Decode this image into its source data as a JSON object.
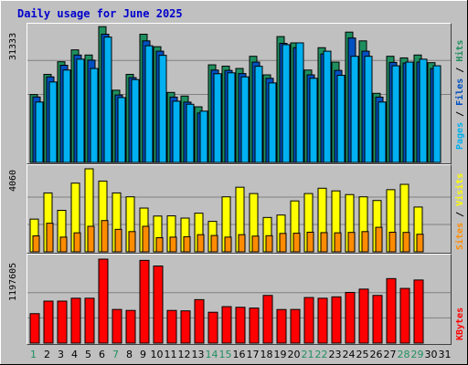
{
  "title": "Daily usage for June 2025",
  "colors": {
    "background": "#c0c0c0",
    "title": "#0000cc",
    "hits": "#1f8f5f",
    "files": "#0050c0",
    "pages": "#00b0f0",
    "visits": "#ffff00",
    "sites": "#ff8c00",
    "kbytes": "#ff0000",
    "weekend_label": "#1f8f5f",
    "weekday_label": "#000000"
  },
  "chart_data": [
    {
      "type": "bar",
      "title": "Hits / Files / Pages",
      "ymax_label": "31333",
      "ymax": 31333,
      "categories": [
        "1",
        "2",
        "3",
        "4",
        "5",
        "6",
        "7",
        "8",
        "9",
        "10",
        "11",
        "12",
        "13",
        "14",
        "15",
        "16",
        "17",
        "18",
        "19",
        "20",
        "21",
        "22",
        "23",
        "24",
        "25",
        "26",
        "27",
        "28",
        "29",
        "30",
        "31"
      ],
      "series": [
        {
          "name": "Hits",
          "values": [
            15640,
            20290,
            23200,
            25940,
            24750,
            31290,
            16640,
            20290,
            29540,
            26670,
            16130,
            15300,
            12820,
            22490,
            22190,
            21650,
            24460,
            20180,
            29000,
            27550,
            21290,
            26440,
            23120,
            30030,
            28010,
            15920,
            24460,
            24090,
            24750,
            22990,
            0
          ]
        },
        {
          "name": "Files",
          "values": [
            15090,
            19720,
            22390,
            24750,
            23570,
            29540,
            15540,
            19540,
            28010,
            25640,
            15050,
            13900,
            11390,
            21290,
            21210,
            20480,
            23120,
            19390,
            27440,
            26440,
            20180,
            25010,
            21210,
            28670,
            25640,
            15050,
            23050,
            22920,
            23120,
            21650,
            0
          ]
        },
        {
          "name": "Pages",
          "values": [
            13920,
            18540,
            21290,
            23790,
            21650,
            28890,
            14950,
            19090,
            26890,
            24680,
            14110,
            13410,
            11820,
            20440,
            20650,
            19720,
            22160,
            18330,
            27140,
            27550,
            19390,
            25640,
            20070,
            24460,
            24460,
            13920,
            22270,
            23120,
            23790,
            22270,
            0
          ]
        }
      ]
    },
    {
      "type": "bar",
      "title": "Visits / Sites",
      "ymax_label": "4060",
      "ymax": 4060,
      "categories": [
        "1",
        "2",
        "3",
        "4",
        "5",
        "6",
        "7",
        "8",
        "9",
        "10",
        "11",
        "12",
        "13",
        "14",
        "15",
        "16",
        "17",
        "18",
        "19",
        "20",
        "21",
        "22",
        "23",
        "24",
        "25",
        "26",
        "27",
        "28",
        "29",
        "30",
        "31"
      ],
      "series": [
        {
          "name": "Visits",
          "values": [
            1600,
            2880,
            2030,
            3360,
            4060,
            3460,
            2880,
            2690,
            2140,
            1750,
            1760,
            1650,
            1890,
            1490,
            2690,
            3160,
            2850,
            1680,
            1800,
            2490,
            2850,
            3110,
            2980,
            2800,
            2690,
            2510,
            3040,
            3300,
            2190,
            0,
            0
          ]
        },
        {
          "name": "Sites",
          "values": [
            780,
            1400,
            720,
            930,
            1250,
            1530,
            1100,
            990,
            1250,
            690,
            720,
            740,
            840,
            800,
            720,
            840,
            770,
            790,
            900,
            910,
            960,
            940,
            930,
            950,
            990,
            1200,
            960,
            950,
            860,
            0,
            0
          ]
        }
      ]
    },
    {
      "type": "bar",
      "title": "KBytes",
      "ymax_label": "1197605",
      "ymax": 1197605,
      "categories": [
        "1",
        "2",
        "3",
        "4",
        "5",
        "6",
        "7",
        "8",
        "9",
        "10",
        "11",
        "12",
        "13",
        "14",
        "15",
        "16",
        "17",
        "18",
        "19",
        "20",
        "21",
        "22",
        "23",
        "24",
        "25",
        "26",
        "27",
        "28",
        "29",
        "30",
        "31"
      ],
      "series": [
        {
          "name": "KBytes",
          "values": [
            420000,
            599000,
            599000,
            640000,
            640000,
            1197605,
            480000,
            466000,
            1180000,
            1100000,
            466000,
            460000,
            620000,
            440000,
            520000,
            511000,
            500000,
            680000,
            479000,
            480000,
            650000,
            640000,
            660000,
            723000,
            770000,
            680000,
            920000,
            780000,
            900000,
            0,
            0
          ]
        }
      ]
    }
  ],
  "right_labels": {
    "top": [
      {
        "text": "Pages",
        "color": "#00b0f0"
      },
      {
        "text": " / ",
        "color": "#000000"
      },
      {
        "text": "Files",
        "color": "#0050c0"
      },
      {
        "text": " / ",
        "color": "#000000"
      },
      {
        "text": "Hits",
        "color": "#1f8f5f"
      }
    ],
    "middle": [
      {
        "text": "Sites",
        "color": "#ff8c00"
      },
      {
        "text": " / ",
        "color": "#000000"
      },
      {
        "text": "Visits",
        "color": "#ffff00"
      }
    ],
    "bottom": [
      {
        "text": "KBytes",
        "color": "#ff0000"
      }
    ]
  },
  "weekend_days": [
    "1",
    "7",
    "14",
    "15",
    "21",
    "22",
    "28",
    "29"
  ]
}
